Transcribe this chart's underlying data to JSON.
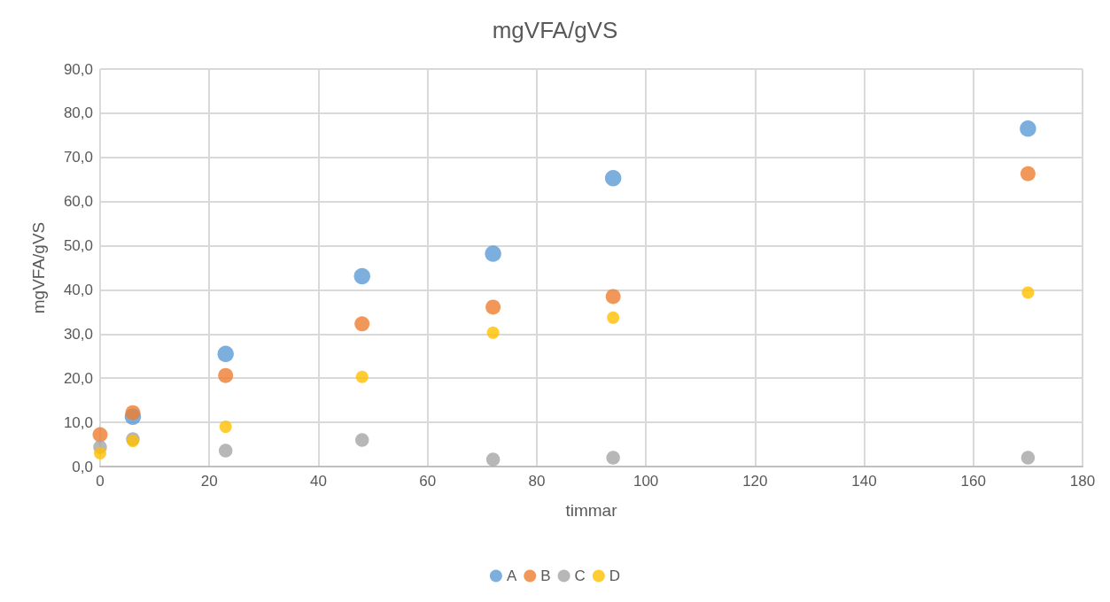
{
  "chart_data": {
    "type": "scatter",
    "title": "mgVFA/gVS",
    "xlabel": "timmar",
    "ylabel": "mgVFA/gVS",
    "x": [
      0,
      6,
      23,
      48,
      72,
      94,
      170
    ],
    "series": [
      {
        "name": "A",
        "color": "#5b9bd5",
        "values": [
          null,
          11.3,
          25.5,
          43.1,
          48.2,
          65.3,
          76.5
        ]
      },
      {
        "name": "B",
        "color": "#ed7d31",
        "values": [
          7.2,
          12.2,
          20.6,
          32.3,
          36.1,
          38.5,
          66.3
        ]
      },
      {
        "name": "C",
        "color": "#a5a5a5",
        "values": [
          4.4,
          6.2,
          3.6,
          6.0,
          1.6,
          2.0,
          2.0
        ]
      },
      {
        "name": "D",
        "color": "#ffc000",
        "values": [
          3.0,
          5.8,
          9.0,
          20.3,
          30.3,
          33.7,
          39.4
        ]
      }
    ],
    "xlim": [
      0,
      180
    ],
    "xticks": [
      0,
      20,
      40,
      60,
      80,
      100,
      120,
      140,
      160,
      180
    ],
    "ylim": [
      0,
      90
    ],
    "yticks": [
      {
        "value": 0,
        "label": "0,0"
      },
      {
        "value": 10,
        "label": "10,0"
      },
      {
        "value": 20,
        "label": "20,0"
      },
      {
        "value": 30,
        "label": "30,0"
      },
      {
        "value": 40,
        "label": "40,0"
      },
      {
        "value": 50,
        "label": "50,0"
      },
      {
        "value": 60,
        "label": "60,0"
      },
      {
        "value": 70,
        "label": "70,0"
      },
      {
        "value": 80,
        "label": "80,0"
      },
      {
        "value": 90,
        "label": "90,0"
      }
    ],
    "grid": true,
    "legend": "bottom",
    "marker": "circle"
  }
}
